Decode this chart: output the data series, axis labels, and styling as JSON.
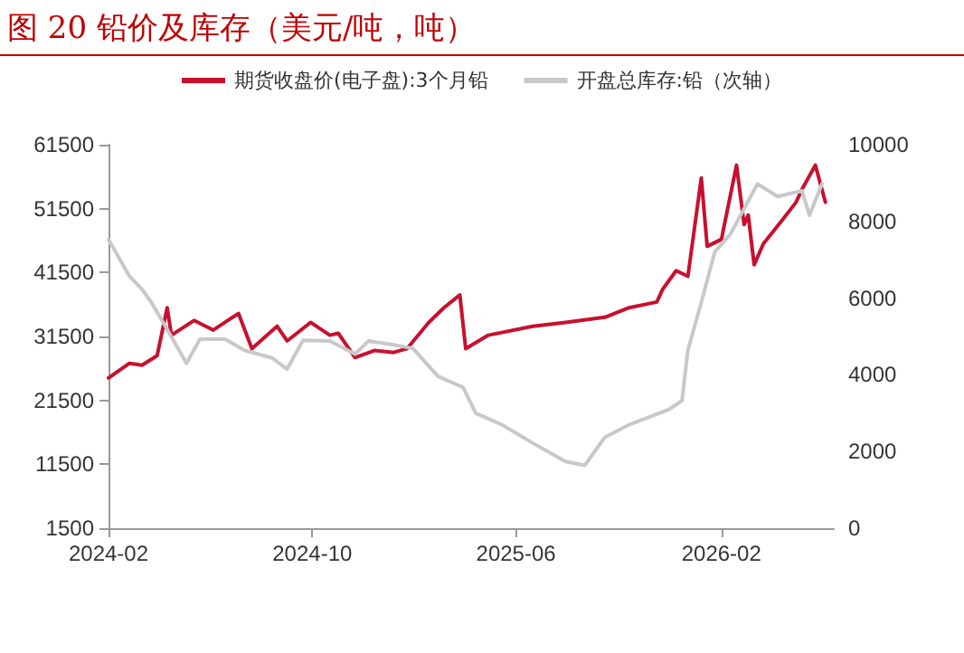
{
  "chart_data": {
    "type": "line",
    "title": "图 20 铅价及库存（美元/吨，吨）",
    "series": [
      {
        "name": "期货收盘价(电子盘):3个月铅",
        "color": "#c8102e",
        "x": [
          "2024-02-01",
          "2024-02-26",
          "2024-03-12",
          "2024-03-30",
          "2024-04-11",
          "2024-04-16",
          "2024-05-13",
          "2024-06-05",
          "2024-07-05",
          "2024-07-21",
          "2024-08-20",
          "2024-09-01",
          "2024-09-29",
          "2024-10-22",
          "2024-11-01",
          "2024-11-21",
          "2024-12-14",
          "2025-01-06",
          "2025-01-22",
          "2025-02-17",
          "2025-03-07",
          "2025-03-26",
          "2025-04-02",
          "2025-04-29",
          "2025-06-21",
          "2025-07-30",
          "2025-09-15",
          "2025-10-14",
          "2025-11-16",
          "2025-11-23",
          "2025-12-09",
          "2025-12-23",
          "2026-01-08",
          "2026-01-15",
          "2026-02-01",
          "2026-02-19",
          "2026-02-28",
          "2026-03-05",
          "2026-03-12",
          "2026-03-23",
          "2026-04-14",
          "2026-05-01",
          "2026-05-08",
          "2026-05-24",
          "2026-06-05"
        ],
        "values": [
          25000,
          27300,
          27000,
          28500,
          36000,
          31700,
          34000,
          32500,
          35100,
          29600,
          33100,
          30800,
          33700,
          31700,
          32000,
          28200,
          29300,
          29000,
          29600,
          33700,
          36000,
          38000,
          29600,
          31700,
          33100,
          33700,
          34500,
          36000,
          36900,
          38900,
          41800,
          40900,
          56300,
          45600,
          46700,
          58300,
          49000,
          50500,
          42700,
          46000,
          49600,
          52500,
          54500,
          58300,
          52500
        ]
      },
      {
        "name": "开盘总库存:铅（次轴）",
        "color": "#c8c8c8",
        "axis": "y2",
        "x": [
          "2024-02-01",
          "2024-02-26",
          "2024-03-12",
          "2024-03-23",
          "2024-04-09",
          "2024-05-04",
          "2024-05-20",
          "2024-06-19",
          "2024-07-12",
          "2024-08-14",
          "2024-09-01",
          "2024-09-20",
          "2024-10-22",
          "2024-11-21",
          "2024-12-07",
          "2025-01-06",
          "2025-01-29",
          "2025-02-28",
          "2025-03-30",
          "2025-04-14",
          "2025-05-15",
          "2025-06-21",
          "2025-07-30",
          "2025-08-22",
          "2025-09-15",
          "2025-10-14",
          "2025-11-30",
          "2025-12-16",
          "2025-12-23",
          "2026-01-08",
          "2026-01-24",
          "2026-02-12",
          "2026-03-16",
          "2026-04-09",
          "2026-05-08",
          "2026-05-17",
          "2026-06-01"
        ],
        "values": [
          7530,
          6570,
          6230,
          5890,
          5260,
          4300,
          4930,
          4930,
          4640,
          4440,
          4150,
          4900,
          4880,
          4540,
          4880,
          4780,
          4690,
          3960,
          3670,
          3000,
          2700,
          2220,
          1740,
          1640,
          2370,
          2700,
          3090,
          3330,
          4640,
          5890,
          7200,
          7680,
          8980,
          8650,
          8800,
          8160,
          8980
        ]
      }
    ],
    "xlim": [
      "2024-02-01",
      "2026-06-15"
    ],
    "xticks": [
      "2024-02",
      "2024-10",
      "2025-06",
      "2026-02"
    ],
    "ylim": [
      1500,
      61500
    ],
    "yticks": [
      1500,
      11500,
      21500,
      31500,
      41500,
      51500,
      61500
    ],
    "y2lim": [
      0,
      10000
    ],
    "y2ticks": [
      0,
      2000,
      4000,
      6000,
      8000,
      10000
    ],
    "legend": "top",
    "grid": false,
    "marker": "none",
    "line_style": "solid"
  }
}
